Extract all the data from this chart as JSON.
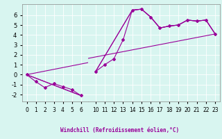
{
  "background_color": "#d8f5f0",
  "grid_color": "#b0ddd8",
  "line_color": "#990099",
  "xlim_left": [
    -0.5,
    6.8
  ],
  "xlim_right": [
    9.2,
    23.5
  ],
  "ylim": [
    -2.7,
    7.1
  ],
  "yticks": [
    -2,
    -1,
    0,
    1,
    2,
    3,
    4,
    5,
    6
  ],
  "xticks_left": [
    0,
    1,
    2,
    3,
    4,
    5,
    6
  ],
  "xticks_right": [
    10,
    11,
    12,
    13,
    14,
    15,
    16,
    17,
    18,
    19,
    20,
    21,
    22,
    23
  ],
  "xlabel": "Windchill (Refroidissement éolien,°C)",
  "main_x": [
    0,
    1,
    2,
    3,
    4,
    5,
    6,
    10,
    11,
    12,
    13,
    14,
    15,
    16,
    17,
    18,
    19,
    20,
    21,
    22,
    23
  ],
  "main_y": [
    0,
    -0.7,
    -1.3,
    -0.9,
    -1.2,
    -1.5,
    -2.1,
    0.3,
    1.0,
    1.6,
    3.5,
    6.5,
    6.6,
    5.8,
    4.7,
    4.9,
    5.0,
    5.5,
    5.4,
    5.5,
    4.1
  ],
  "line2_x": [
    0,
    23
  ],
  "line2_y": [
    0,
    4.1
  ],
  "line3_x": [
    0,
    6,
    10,
    14,
    15,
    16,
    17,
    18,
    19,
    20,
    21,
    22,
    23
  ],
  "line3_y": [
    0,
    -2.1,
    0.3,
    6.5,
    6.6,
    5.8,
    4.7,
    4.9,
    5.0,
    5.5,
    5.4,
    5.5,
    4.1
  ]
}
